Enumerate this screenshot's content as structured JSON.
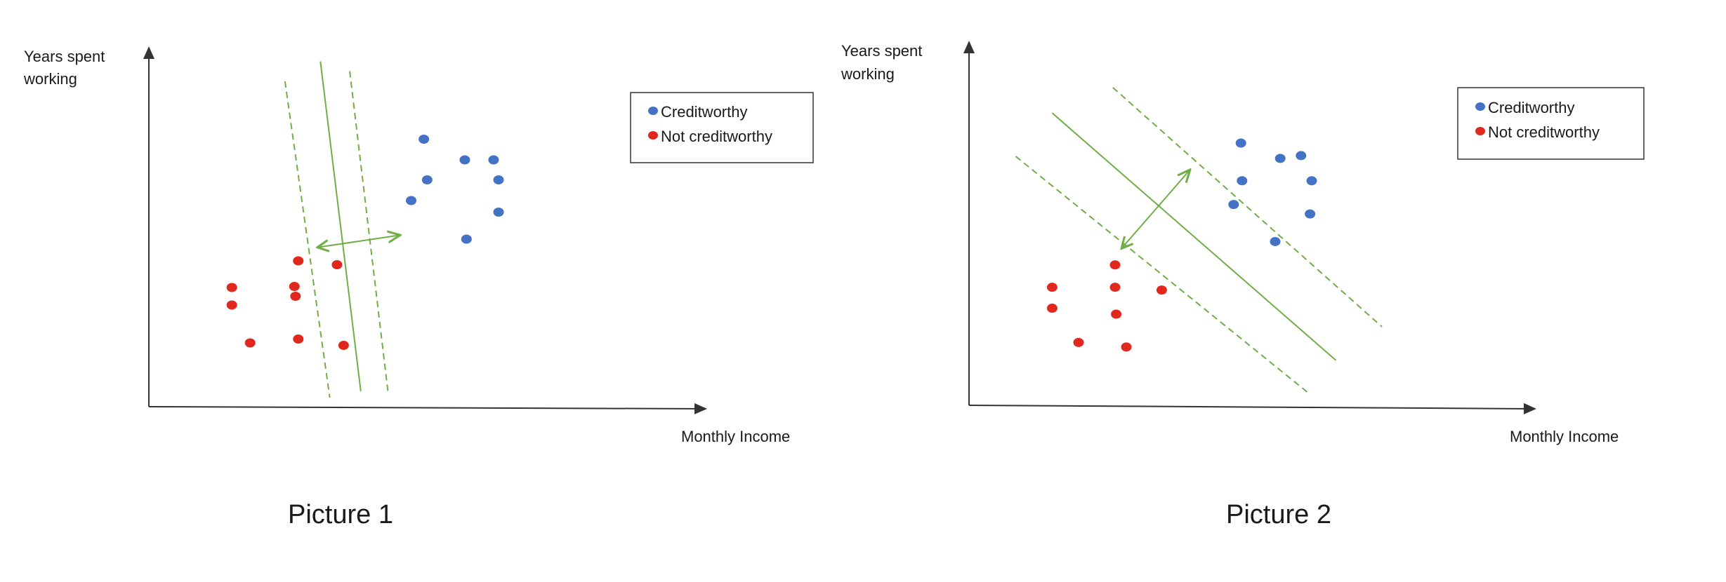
{
  "colors": {
    "creditworthy": "#4472c4",
    "not_creditworthy": "#e0281e",
    "boundary": "#70ad47",
    "axis": "#333333"
  },
  "chart_data": [
    {
      "type": "scatter",
      "caption": "Picture 1",
      "ylabel": [
        "Years spent",
        "working"
      ],
      "xlabel": "Monthly Income",
      "legend": [
        "Creditworthy",
        "Not creditworthy"
      ],
      "legend_position": "top-right",
      "grid": false,
      "series": [
        {
          "name": "Creditworthy",
          "points": [
            [
              0.497,
              0.763
            ],
            [
              0.503,
              0.647
            ],
            [
              0.474,
              0.588
            ],
            [
              0.571,
              0.704
            ],
            [
              0.623,
              0.704
            ],
            [
              0.632,
              0.647
            ],
            [
              0.632,
              0.555
            ],
            [
              0.574,
              0.478
            ]
          ]
        },
        {
          "name": "Not creditworthy",
          "points": [
            [
              0.27,
              0.416
            ],
            [
              0.263,
              0.343
            ],
            [
              0.34,
              0.405
            ],
            [
              0.265,
              0.315
            ],
            [
              0.15,
              0.34
            ],
            [
              0.15,
              0.29
            ],
            [
              0.27,
              0.193
            ],
            [
              0.183,
              0.182
            ],
            [
              0.352,
              0.175
            ]
          ]
        }
      ],
      "boundary": {
        "center": [
          [
            0.31,
            0.985
          ],
          [
            0.383,
            0.044
          ]
        ],
        "margin_upper": [
          [
            0.363,
            0.957
          ],
          [
            0.432,
            0.044
          ]
        ],
        "margin_lower": [
          [
            0.246,
            0.928
          ],
          [
            0.327,
            0.026
          ]
        ],
        "arrow": [
          [
            0.307,
            0.455
          ],
          [
            0.452,
            0.489
          ]
        ]
      }
    },
    {
      "type": "scatter",
      "caption": "Picture 2",
      "ylabel": [
        "Years spent",
        "working"
      ],
      "xlabel": "Monthly Income",
      "legend": [
        "Creditworthy",
        "Not creditworthy"
      ],
      "legend_position": "top-right",
      "grid": false,
      "series": [
        {
          "name": "Creditworthy",
          "points": [
            [
              0.484,
              0.751
            ],
            [
              0.486,
              0.643
            ],
            [
              0.471,
              0.575
            ],
            [
              0.554,
              0.707
            ],
            [
              0.591,
              0.715
            ],
            [
              0.61,
              0.643
            ],
            [
              0.607,
              0.548
            ],
            [
              0.545,
              0.469
            ]
          ]
        },
        {
          "name": "Not creditworthy",
          "points": [
            [
              0.26,
              0.402
            ],
            [
              0.26,
              0.338
            ],
            [
              0.343,
              0.33
            ],
            [
              0.148,
              0.338
            ],
            [
              0.148,
              0.278
            ],
            [
              0.262,
              0.261
            ],
            [
              0.195,
              0.18
            ],
            [
              0.28,
              0.167
            ]
          ]
        }
      ],
      "boundary": {
        "center": [
          [
            0.148,
            0.837
          ],
          [
            0.653,
            0.129
          ]
        ],
        "margin_upper": [
          [
            0.256,
            0.91
          ],
          [
            0.735,
            0.225
          ]
        ],
        "margin_lower": [
          [
            0.083,
            0.713
          ],
          [
            0.602,
            0.038
          ]
        ],
        "arrow": [
          [
            0.273,
            0.452
          ],
          [
            0.392,
            0.672
          ]
        ]
      }
    }
  ]
}
